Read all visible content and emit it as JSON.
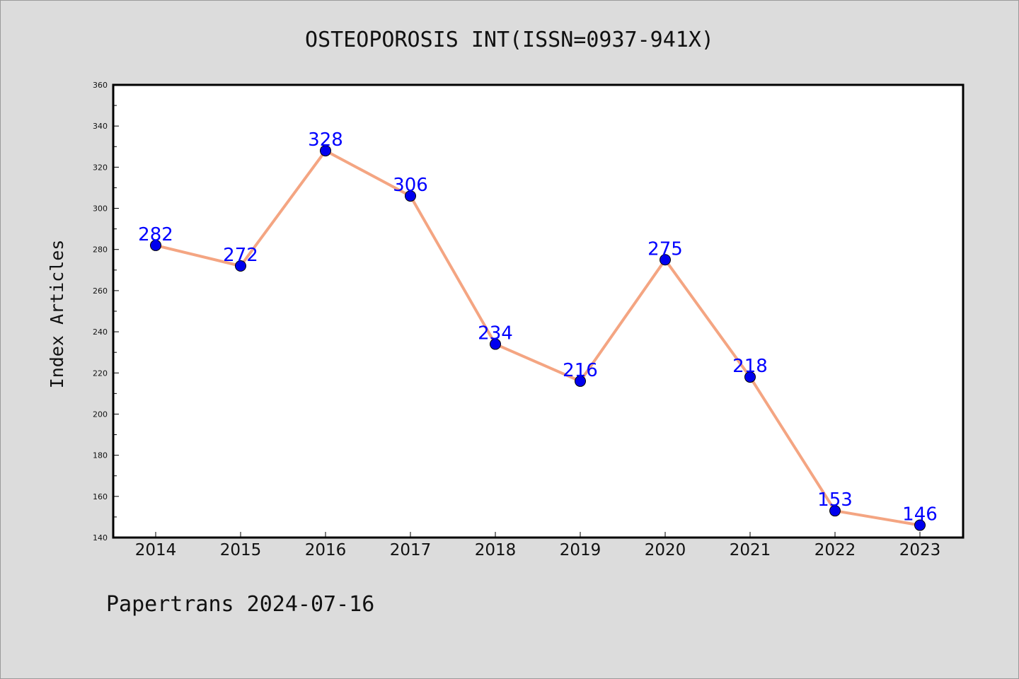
{
  "chart_data": {
    "type": "line",
    "title": "OSTEOPOROSIS INT(ISSN=0937-941X)",
    "ylabel": "Index Articles",
    "xlabel": "",
    "categories": [
      "2014",
      "2015",
      "2016",
      "2017",
      "2018",
      "2019",
      "2020",
      "2021",
      "2022",
      "2023"
    ],
    "values": [
      282,
      272,
      328,
      306,
      234,
      216,
      275,
      218,
      153,
      146
    ],
    "ylim": [
      140,
      360
    ],
    "yticks": [
      140,
      160,
      180,
      200,
      220,
      240,
      260,
      280,
      300,
      320,
      340,
      360
    ],
    "grid": false,
    "legend": "none",
    "colors": {
      "line": "#f4a582",
      "marker": "#0000ee",
      "data_label": "#0000ff",
      "plot_bg": "#ffffff",
      "figure_bg": "#dcdcdc"
    }
  },
  "footer": "Papertrans 2024-07-16"
}
